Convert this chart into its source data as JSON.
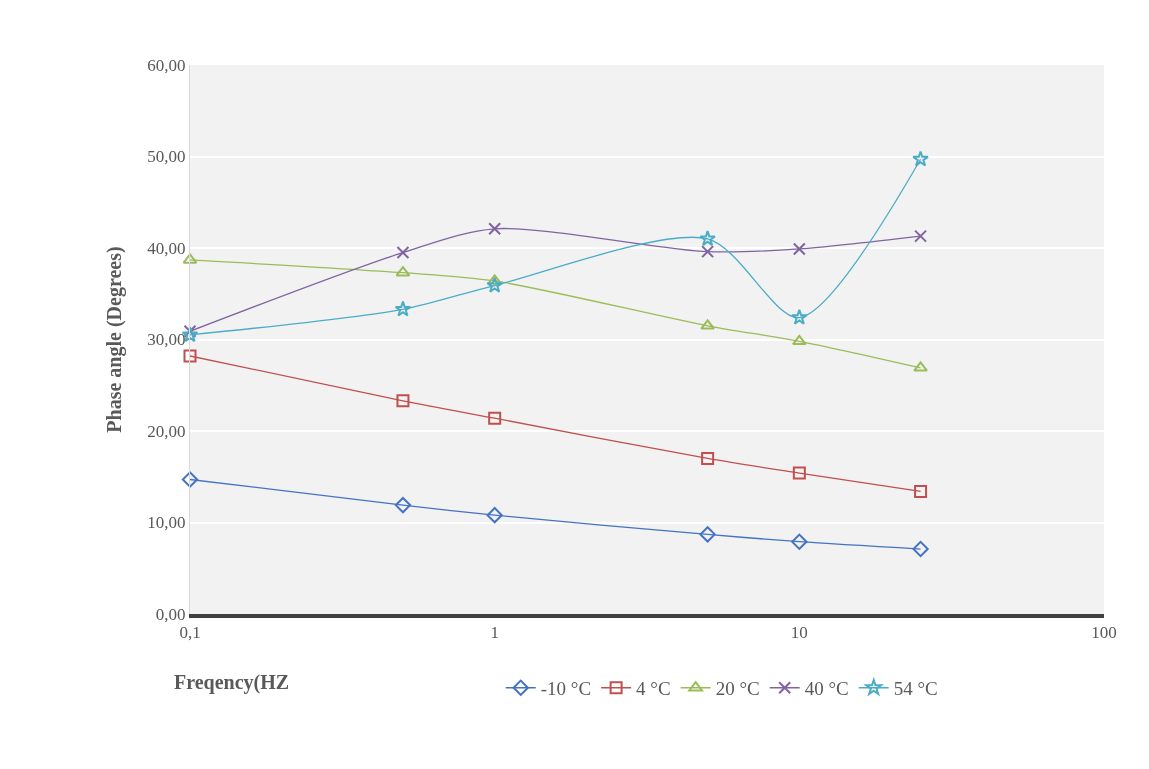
{
  "chart_data": {
    "type": "line",
    "xlabel": "Freqency(HZ",
    "ylabel": "Phase angle (Degrees)",
    "log": "x",
    "grid": "y",
    "legend": "bottom",
    "line_style": "solid",
    "x": [
      0.1,
      0.5,
      1,
      5,
      10,
      25
    ],
    "xlim": [
      0.1,
      100
    ],
    "xticks": [
      {
        "value": 0.1,
        "label": "0,1"
      },
      1,
      10,
      100
    ],
    "ylim": [
      0,
      60
    ],
    "yticks": [
      {
        "value": 0,
        "label": "0,00"
      },
      {
        "value": 10,
        "label": "10,00"
      },
      {
        "value": 20,
        "label": "20,00"
      },
      {
        "value": 30,
        "label": "30,00"
      },
      {
        "value": 40,
        "label": "40,00"
      },
      {
        "value": 50,
        "label": "50,00"
      },
      {
        "value": 60,
        "label": "60,00"
      }
    ],
    "series": [
      {
        "name": "-10 °C",
        "color": "#4472c4",
        "marker": "diamond",
        "values": [
          14.7,
          11.9,
          10.8,
          8.7,
          7.9,
          7.1
        ]
      },
      {
        "name": "4 °C",
        "color": "#c0504d",
        "marker": "square",
        "values": [
          28.2,
          23.3,
          21.4,
          17.0,
          15.4,
          13.4
        ]
      },
      {
        "name": "20 °C",
        "color": "#9bbb59",
        "marker": "triangle",
        "values": [
          38.7,
          37.3,
          36.4,
          31.5,
          29.8,
          26.9
        ]
      },
      {
        "name": "40 °C",
        "color": "#8064a2",
        "marker": "cross",
        "values": [
          30.9,
          39.5,
          42.1,
          39.6,
          39.9,
          41.3
        ]
      },
      {
        "name": "54 °C",
        "color": "#4bacc6",
        "marker": "star",
        "values": [
          30.5,
          33.3,
          35.9,
          41.0,
          32.4,
          49.7
        ]
      }
    ]
  }
}
